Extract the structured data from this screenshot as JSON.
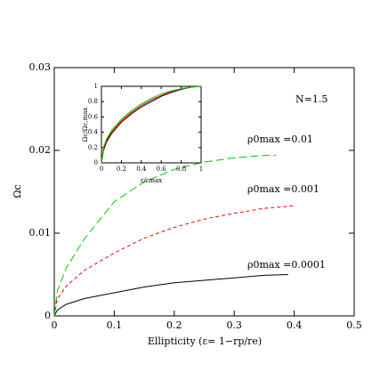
{
  "chart_data": [
    {
      "type": "line",
      "xlabel": "Ellipticity (ε= 1−rp/re)",
      "ylabel": "Ωc",
      "xlim": [
        0,
        0.5
      ],
      "ylim": [
        0,
        0.03
      ],
      "xticks": [
        0,
        0.1,
        0.2,
        0.3,
        0.4,
        0.5
      ],
      "yticks": [
        0,
        0.01,
        0.02,
        0.03
      ],
      "annotations": [
        "N=1.5",
        "ρ0max =0.01",
        "ρ0max =0.001",
        "ρ0max =0.0001"
      ],
      "series": [
        {
          "color": "#000000",
          "dash": "none",
          "x": [
            0,
            0.005,
            0.02,
            0.05,
            0.1,
            0.15,
            0.2,
            0.25,
            0.3,
            0.35,
            0.39
          ],
          "values": [
            0,
            0.0007,
            0.0014,
            0.0021,
            0.0028,
            0.0035,
            0.004,
            0.0043,
            0.0046,
            0.0049,
            0.005
          ]
        },
        {
          "color": "#ff0000",
          "dash": "4 3",
          "x": [
            0,
            0.005,
            0.02,
            0.05,
            0.1,
            0.15,
            0.2,
            0.25,
            0.3,
            0.35,
            0.4
          ],
          "values": [
            0,
            0.002,
            0.0036,
            0.0055,
            0.0076,
            0.0094,
            0.0107,
            0.0117,
            0.0124,
            0.013,
            0.0133
          ]
        },
        {
          "color": "#00cc00",
          "dash": "9 4",
          "x": [
            0,
            0.005,
            0.02,
            0.05,
            0.1,
            0.15,
            0.2,
            0.25,
            0.3,
            0.35,
            0.37
          ],
          "values": [
            0,
            0.003,
            0.0058,
            0.0093,
            0.0138,
            0.0162,
            0.0177,
            0.0186,
            0.0191,
            0.0194,
            0.0194
          ]
        }
      ]
    },
    {
      "type": "line",
      "xlabel": "ε/εmax",
      "ylabel": "Ωc/Ωc,max",
      "xlim": [
        0,
        1
      ],
      "ylim": [
        0,
        1
      ],
      "xticks": [
        0,
        0.2,
        0.4,
        0.6,
        0.8,
        1
      ],
      "yticks": [
        0,
        0.2,
        0.4,
        0.6,
        0.8,
        1
      ],
      "annotations": [],
      "series": [
        {
          "color": "#000000",
          "dash": "none",
          "x": [
            0,
            0.02,
            0.05,
            0.1,
            0.2,
            0.3,
            0.4,
            0.5,
            0.6,
            0.7,
            0.8,
            0.9,
            1
          ],
          "values": [
            0,
            0.16,
            0.27,
            0.38,
            0.53,
            0.64,
            0.73,
            0.8,
            0.87,
            0.92,
            0.96,
            0.99,
            1
          ]
        },
        {
          "color": "#ff0000",
          "dash": "none",
          "x": [
            0,
            0.02,
            0.05,
            0.1,
            0.2,
            0.3,
            0.4,
            0.5,
            0.6,
            0.7,
            0.8,
            0.9,
            1
          ],
          "values": [
            0,
            0.18,
            0.29,
            0.4,
            0.55,
            0.66,
            0.75,
            0.82,
            0.88,
            0.93,
            0.97,
            0.99,
            1
          ]
        },
        {
          "color": "#00cc00",
          "dash": "none",
          "x": [
            0,
            0.02,
            0.05,
            0.1,
            0.2,
            0.3,
            0.4,
            0.5,
            0.6,
            0.7,
            0.8,
            0.9,
            1
          ],
          "values": [
            0,
            0.2,
            0.31,
            0.42,
            0.57,
            0.68,
            0.77,
            0.84,
            0.9,
            0.94,
            0.97,
            0.99,
            1
          ]
        }
      ]
    }
  ]
}
